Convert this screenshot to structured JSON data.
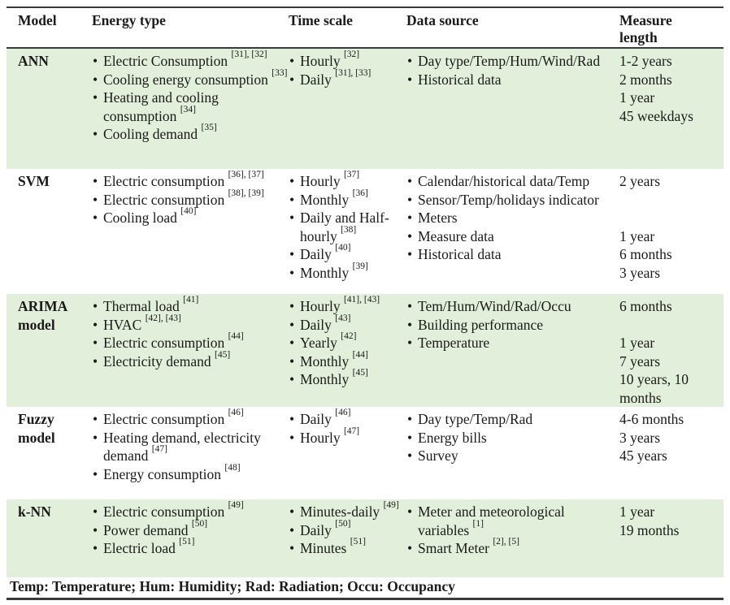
{
  "table": {
    "headers": [
      "Model",
      "Energy type",
      "Time scale",
      "Data source",
      "Measure length"
    ],
    "rows": [
      {
        "model": "ANN",
        "energy_type": [
          "Electric Consumption [31], [32]",
          "Cooling energy consumption [33]",
          "Heating and cooling consumption [34]",
          "Cooling demand [35]"
        ],
        "time_scale": [
          "Hourly [32]",
          "Daily [31], [33]"
        ],
        "data_source": [
          "Day type/Temp/Hum/Wind/Rad",
          "Historical data"
        ],
        "measure_length": [
          "1-2 years",
          "2 months",
          "1 year",
          "45 weekdays"
        ]
      },
      {
        "model": "SVM",
        "energy_type": [
          "Electric consumption [36], [37]",
          "Electric consumption [38], [39]",
          "Cooling load [40]"
        ],
        "time_scale": [
          "Hourly [37]",
          "Monthly [36]",
          "Daily and Half-hourly [38]",
          "Daily [40]",
          "Monthly [39]"
        ],
        "data_source": [
          "Calendar/historical data/Temp",
          "Sensor/Temp/holidays indicator",
          "Meters",
          "Measure data",
          "Historical data"
        ],
        "measure_length": [
          "2 years",
          "",
          "",
          "1 year",
          "6 months",
          "3 years"
        ]
      },
      {
        "model": "ARIMA model",
        "energy_type": [
          "Thermal load [41]",
          "HVAC [42], [43]",
          "Electric consumption [44]",
          "Electricity demand [45]"
        ],
        "time_scale": [
          "Hourly [41], [43]",
          "Daily [43]",
          "Yearly [42]",
          "Monthly [44]",
          "Monthly [45]"
        ],
        "data_source": [
          "Tem/Hum/Wind/Rad/Occu",
          "Building performance",
          "Temperature"
        ],
        "measure_length": [
          "6 months",
          "",
          "1 year",
          "7 years",
          "10 years, 10 months"
        ]
      },
      {
        "model": "Fuzzy model",
        "energy_type": [
          "Electric consumption [46]",
          "Heating demand, electricity demand [47]",
          "Energy consumption [48]"
        ],
        "time_scale": [
          "Daily [46]",
          "Hourly [47]"
        ],
        "data_source": [
          "Day type/Temp/Rad",
          "Energy bills",
          "Survey"
        ],
        "measure_length": [
          "4-6 months",
          "3 years",
          "45 years"
        ]
      },
      {
        "model": "k-NN",
        "energy_type": [
          "Electric consumption [49]",
          "Power demand [50]",
          "Electric load [51]"
        ],
        "time_scale": [
          "Minutes-daily [49]",
          "Daily [50]",
          "Minutes [51]"
        ],
        "data_source": [
          "Meter and meteorological variables [1]",
          "Smart Meter [2], [5]"
        ],
        "measure_length": [
          "1 year",
          "19 months"
        ]
      }
    ],
    "footnote": "Temp: Temperature; Hum: Humidity; Rad: Radiation; Occu: Occupancy"
  },
  "colors": {
    "row_highlight": "#e2efda",
    "row_plain": "#ffffff",
    "border": "#3a3a3a",
    "text": "#1a1a1a"
  }
}
